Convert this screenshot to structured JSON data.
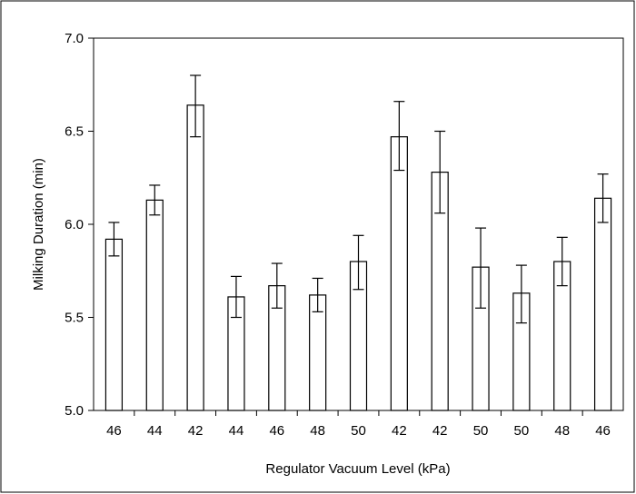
{
  "chart_data": {
    "type": "bar",
    "title": "",
    "xlabel": "Regulator Vacuum Level (kPa)",
    "ylabel": "Milking Duration  (min)",
    "ylim": [
      5.0,
      7.0
    ],
    "yticks": [
      "5.0",
      "5.5",
      "6.0",
      "6.5",
      "7.0"
    ],
    "grid": false,
    "legend": "none",
    "categories": [
      "46",
      "44",
      "42",
      "44",
      "46",
      "48",
      "50",
      "42",
      "42",
      "50",
      "50",
      "48",
      "46"
    ],
    "values": [
      5.92,
      6.13,
      6.64,
      5.61,
      5.67,
      5.62,
      5.8,
      6.47,
      6.28,
      5.77,
      5.63,
      5.8,
      6.14
    ],
    "error_low": [
      5.83,
      6.05,
      6.47,
      5.5,
      5.55,
      5.53,
      5.65,
      6.29,
      6.06,
      5.55,
      5.47,
      5.67,
      6.01
    ],
    "error_high": [
      6.01,
      6.21,
      6.8,
      5.72,
      5.79,
      5.71,
      5.94,
      6.66,
      6.5,
      5.98,
      5.78,
      5.93,
      6.27
    ],
    "colors": {
      "bar_fill": "#ffffff",
      "bar_stroke": "#000000",
      "axis": "#000000",
      "frame": "#000000"
    }
  }
}
